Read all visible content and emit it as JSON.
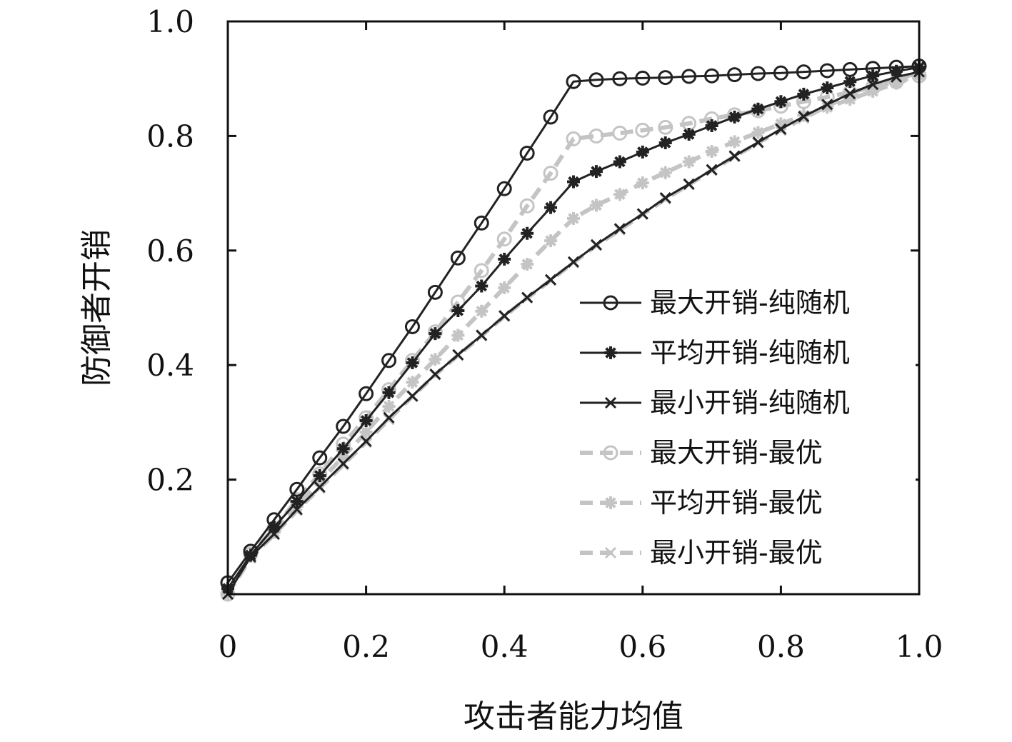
{
  "chart_data": {
    "type": "line",
    "title": "",
    "xlabel": "攻击者能力均值",
    "ylabel": "防御者开销",
    "xlim": [
      0,
      1.0
    ],
    "ylim": [
      0,
      1.0
    ],
    "xticks": [
      {
        "v": 0,
        "label": "0"
      },
      {
        "v": 0.2,
        "label": "0.2"
      },
      {
        "v": 0.4,
        "label": "0.4"
      },
      {
        "v": 0.6,
        "label": "0.6"
      },
      {
        "v": 0.8,
        "label": "0.8"
      },
      {
        "v": 1.0,
        "label": "1.0"
      }
    ],
    "yticks": [
      {
        "v": 0.2,
        "label": "0.2"
      },
      {
        "v": 0.4,
        "label": "0.4"
      },
      {
        "v": 0.6,
        "label": "0.6"
      },
      {
        "v": 0.8,
        "label": "0.8"
      },
      {
        "v": 1.0,
        "label": "1.0"
      }
    ],
    "grid": false,
    "legend_position": "lower-right",
    "x": [
      0,
      0.033,
      0.067,
      0.1,
      0.133,
      0.167,
      0.2,
      0.233,
      0.267,
      0.3,
      0.333,
      0.367,
      0.4,
      0.433,
      0.467,
      0.5,
      0.533,
      0.567,
      0.6,
      0.633,
      0.667,
      0.7,
      0.733,
      0.767,
      0.8,
      0.833,
      0.867,
      0.9,
      0.933,
      0.967,
      1.0
    ],
    "series": [
      {
        "name": "最大开销-纯随机",
        "color": "#222222",
        "dashed": false,
        "marker": "circle",
        "values": [
          0.02,
          0.075,
          0.13,
          0.183,
          0.238,
          0.293,
          0.35,
          0.408,
          0.467,
          0.527,
          0.587,
          0.648,
          0.708,
          0.77,
          0.833,
          0.895,
          0.898,
          0.9,
          0.901,
          0.902,
          0.904,
          0.905,
          0.907,
          0.909,
          0.91,
          0.912,
          0.914,
          0.916,
          0.918,
          0.92,
          0.922
        ]
      },
      {
        "name": "平均开销-纯随机",
        "color": "#222222",
        "dashed": false,
        "marker": "star",
        "values": [
          0.01,
          0.068,
          0.117,
          0.162,
          0.207,
          0.254,
          0.303,
          0.352,
          0.404,
          0.455,
          0.495,
          0.538,
          0.585,
          0.63,
          0.675,
          0.72,
          0.738,
          0.755,
          0.772,
          0.788,
          0.803,
          0.818,
          0.833,
          0.847,
          0.86,
          0.873,
          0.884,
          0.895,
          0.905,
          0.913,
          0.92
        ]
      },
      {
        "name": "最小开销-纯随机",
        "color": "#222222",
        "dashed": false,
        "marker": "x",
        "values": [
          0.0,
          0.065,
          0.105,
          0.148,
          0.187,
          0.228,
          0.267,
          0.308,
          0.346,
          0.384,
          0.418,
          0.452,
          0.486,
          0.518,
          0.549,
          0.58,
          0.61,
          0.638,
          0.664,
          0.692,
          0.716,
          0.741,
          0.765,
          0.789,
          0.812,
          0.834,
          0.855,
          0.874,
          0.89,
          0.903,
          0.912
        ]
      },
      {
        "name": "最大开销-最优",
        "color": "#c4c4c4",
        "dashed": true,
        "marker": "circle",
        "values": [
          0.0,
          0.07,
          0.115,
          0.165,
          0.21,
          0.262,
          0.308,
          0.357,
          0.408,
          0.458,
          0.51,
          0.565,
          0.62,
          0.678,
          0.735,
          0.795,
          0.8,
          0.805,
          0.81,
          0.815,
          0.822,
          0.83,
          0.837,
          0.844,
          0.852,
          0.86,
          0.868,
          0.876,
          0.885,
          0.895,
          0.905
        ]
      },
      {
        "name": "平均开销-最优",
        "color": "#c4c4c4",
        "dashed": true,
        "marker": "star",
        "values": [
          0.0,
          0.066,
          0.108,
          0.153,
          0.197,
          0.24,
          0.283,
          0.328,
          0.37,
          0.41,
          0.452,
          0.494,
          0.535,
          0.576,
          0.617,
          0.656,
          0.679,
          0.698,
          0.718,
          0.736,
          0.755,
          0.773,
          0.79,
          0.806,
          0.821,
          0.836,
          0.85,
          0.864,
          0.878,
          0.892,
          0.905
        ]
      },
      {
        "name": "最小开销-最优",
        "color": "#c4c4c4",
        "dashed": true,
        "marker": "x",
        "values": [
          0.0,
          0.063,
          0.104,
          0.146,
          0.185,
          0.226,
          0.265,
          0.305,
          0.345,
          0.383,
          0.417,
          0.451,
          0.485,
          0.517,
          0.548,
          0.579,
          0.609,
          0.636,
          0.663,
          0.69,
          0.715,
          0.74,
          0.764,
          0.788,
          0.81,
          0.831,
          0.852,
          0.871,
          0.887,
          0.9,
          0.91
        ]
      }
    ]
  }
}
